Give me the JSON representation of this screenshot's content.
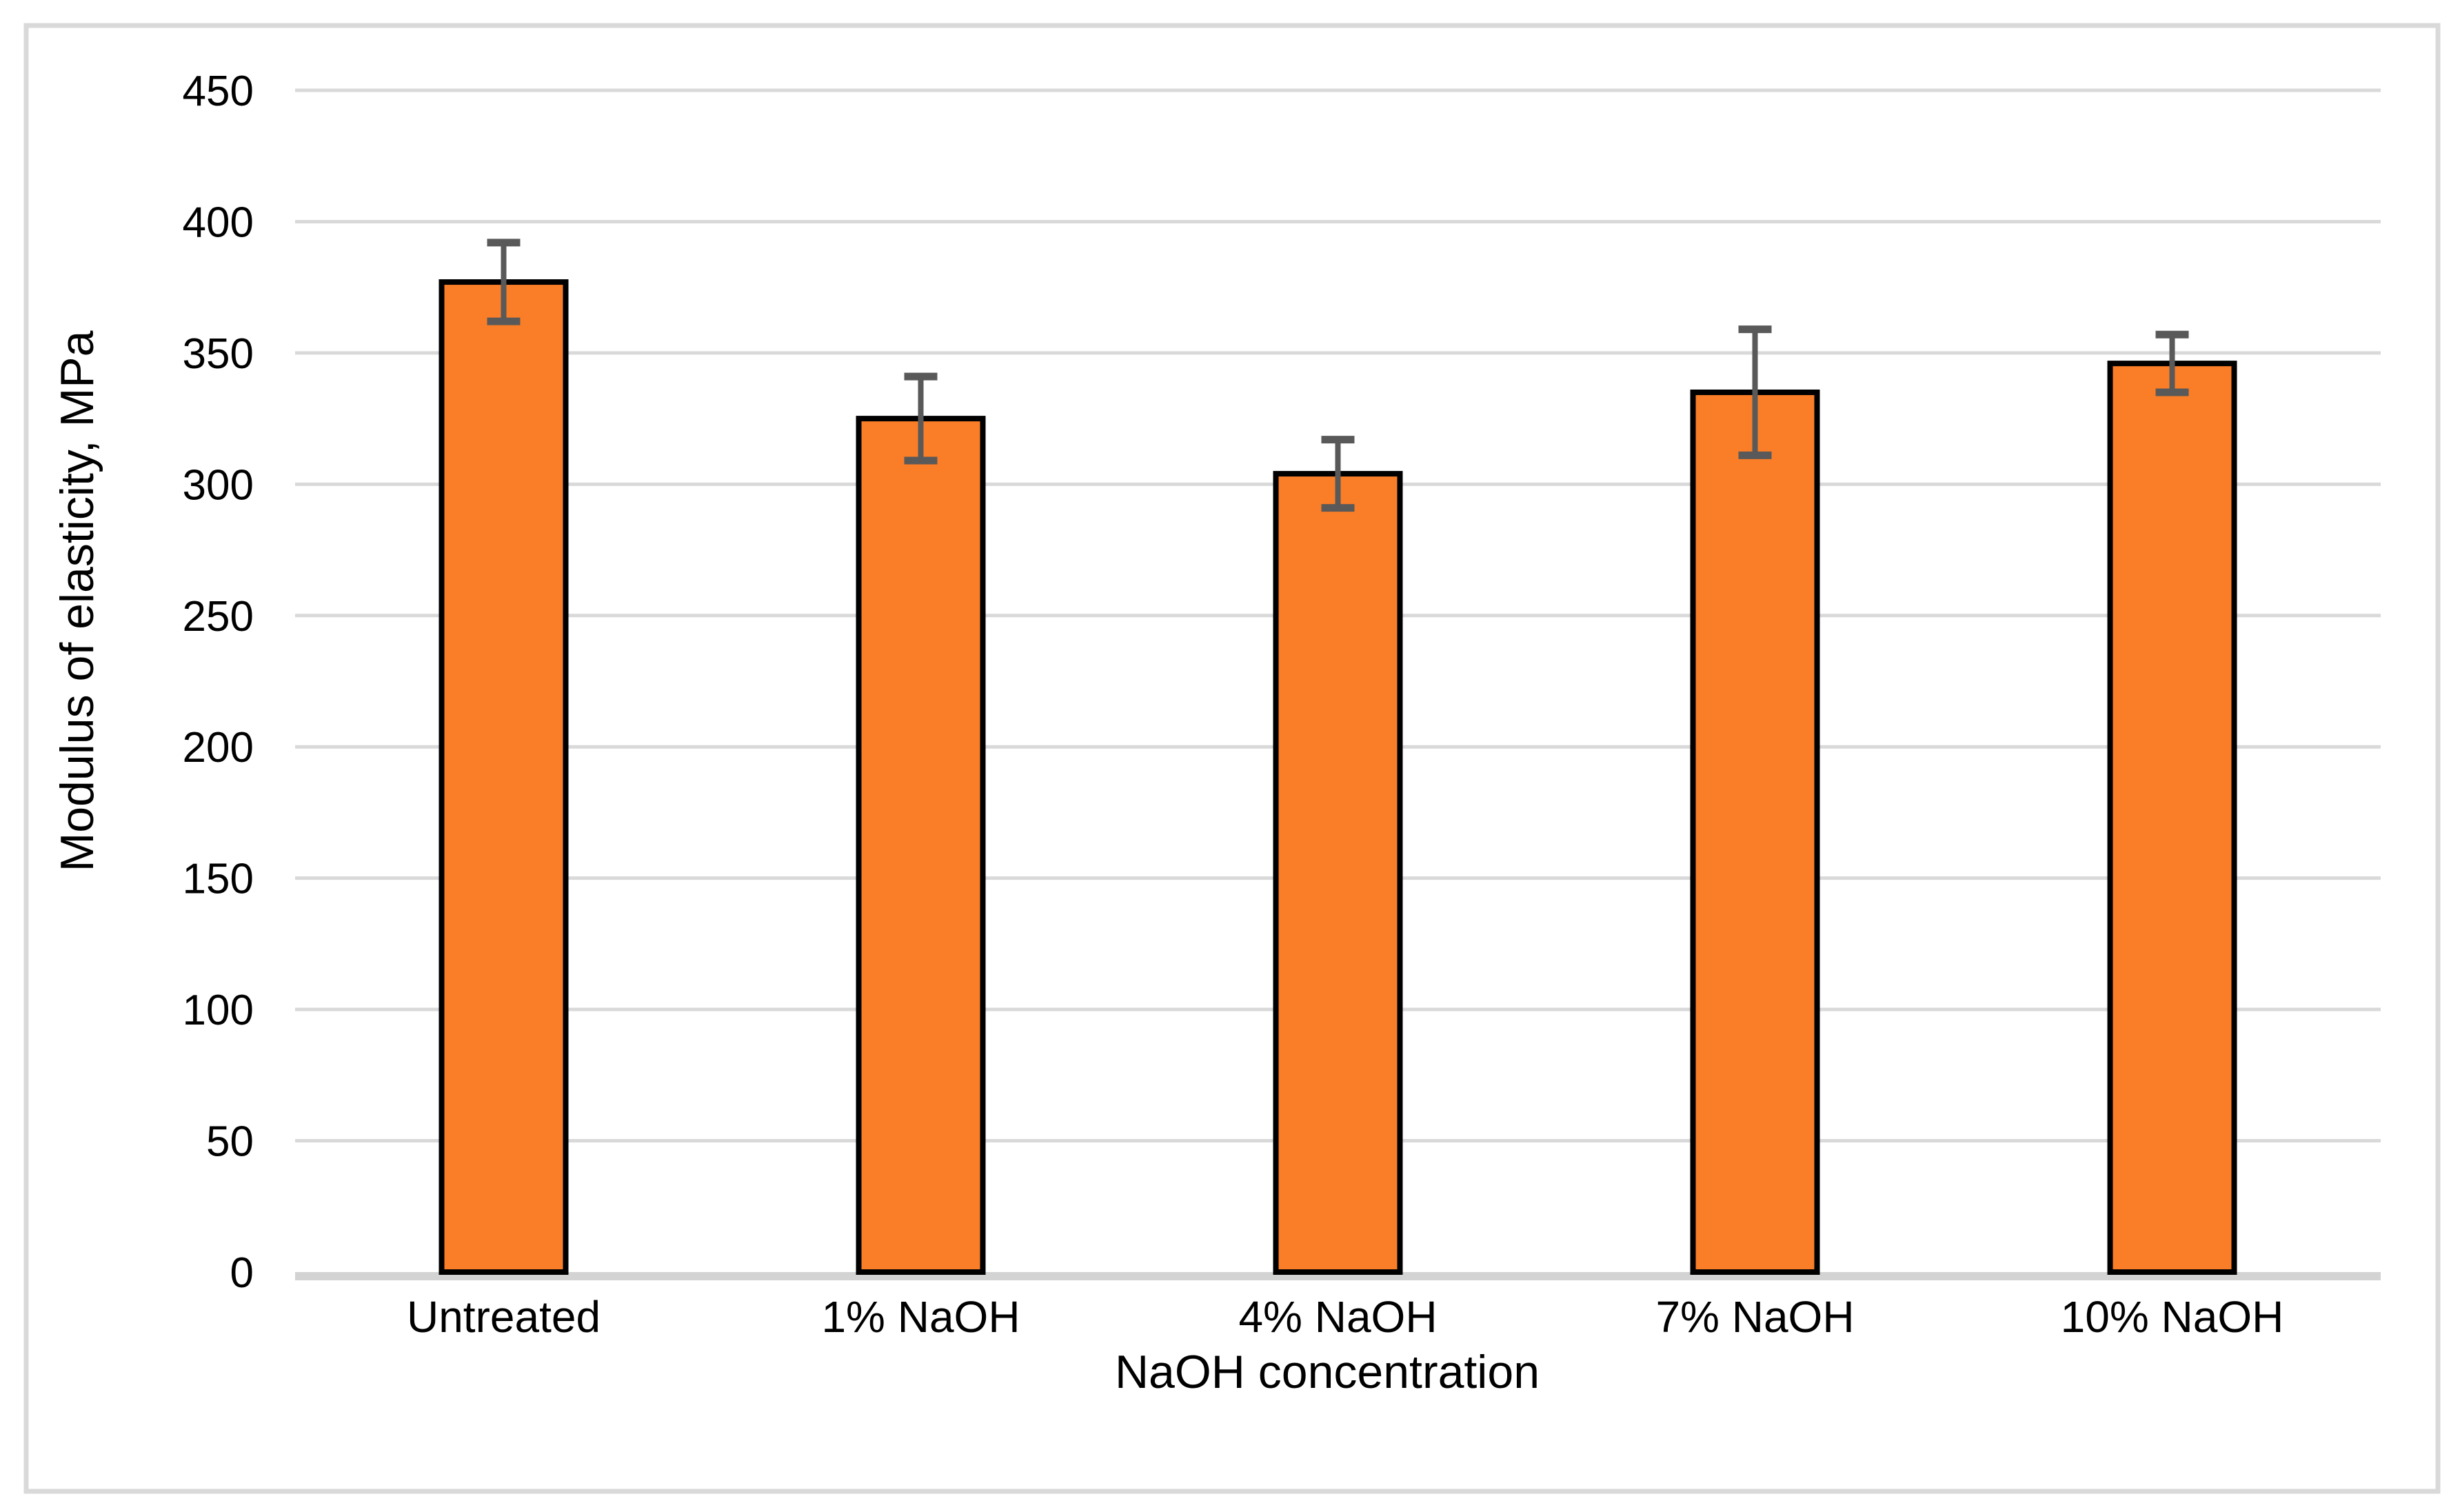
{
  "chart_data": {
    "type": "bar",
    "title": "",
    "categories": [
      "Untreated",
      "1% NaOH",
      "4% NaOH",
      "7% NaOH",
      "10% NaOH"
    ],
    "values": [
      377,
      325,
      304,
      335,
      346
    ],
    "error_bars_plus": [
      15,
      16,
      13,
      24,
      11
    ],
    "error_bars_minus": [
      15,
      16,
      13,
      24,
      11
    ],
    "xlabel": "NaOH concentration",
    "ylabel": "Modulus of elasticity, MPa",
    "ylim": [
      0,
      450
    ],
    "ytick_step": 50,
    "ytick_labels": [
      "450",
      "400",
      "350",
      "300",
      "250",
      "200",
      "150",
      "100",
      "50",
      "0"
    ],
    "grid": true,
    "legend": false,
    "colors": {
      "bar_fill": "#fa7e28",
      "bar_border": "#000000",
      "error_bar": "#595959",
      "gridline": "#d9d9d9",
      "axis_line": "#d3d3d3",
      "frame_border": "#d9d9d9",
      "background": "#ffffff",
      "text": "#000000"
    }
  }
}
